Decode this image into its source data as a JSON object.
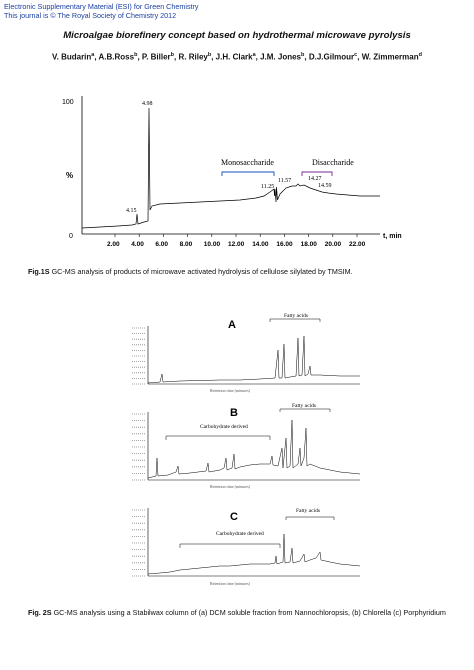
{
  "header": {
    "line1": "Electronic Supplementary Material (ESI) for Green Chemistry",
    "line2": "This journal is © The Royal Society of Chemistry 2012"
  },
  "paper": {
    "title": "Microalgae biorefinery concept based on hydrothermal microwave pyrolysis",
    "authors": [
      {
        "name": "V. Budarin",
        "sup": "a"
      },
      {
        "name": "A.B.Ross",
        "sup": "b"
      },
      {
        "name": "P. Biller",
        "sup": "b"
      },
      {
        "name": "R. Riley",
        "sup": "b"
      },
      {
        "name": "J.H. Clark",
        "sup": "a"
      },
      {
        "name": "J.M. Jones",
        "sup": "b"
      },
      {
        "name": "D.J.Gilmour",
        "sup": "c"
      },
      {
        "name": "W. Zimmerman",
        "sup": "d"
      }
    ]
  },
  "figure1": {
    "y_axis_label": "%",
    "y_tick_top": "100",
    "y_tick_bottom": "0",
    "x_ticks": [
      "2.00",
      "4.00",
      "6.00",
      "8.00",
      "10.00",
      "12.00",
      "14.00",
      "16.00",
      "18.00",
      "20.00",
      "22.00"
    ],
    "x_axis_label": "t, min",
    "peak_labels": {
      "p415": "4.15",
      "p498": "4.98",
      "p1125": "11.25",
      "p1157": "11.57",
      "p1427": "14.27",
      "p1459": "14.59"
    },
    "region_mono": "Monosaccharide",
    "region_di": "Disaccharide",
    "caption_lead": "Fig.1S",
    "caption_text": " GC-MS analysis of products of microwave activated hydrolysis of cellulose silylated by TMSIM."
  },
  "figure2": {
    "panel_a": {
      "letter": "A",
      "annotation": "Fatty acids"
    },
    "panel_b": {
      "letter": "B",
      "annotation_left": "Carbohydrate derived",
      "annotation_right": "Fatty acids"
    },
    "panel_c": {
      "letter": "C",
      "annotation_left": "Carbohydrate derived",
      "annotation_right": "Fatty acids"
    },
    "caption_lead": "Fig. 2S",
    "caption_text": " GC-MS analysis using a Stabilwax column of (a) DCM soluble fraction from Nannochloropsis, (b) Chlorella (c) Porphyridium"
  }
}
